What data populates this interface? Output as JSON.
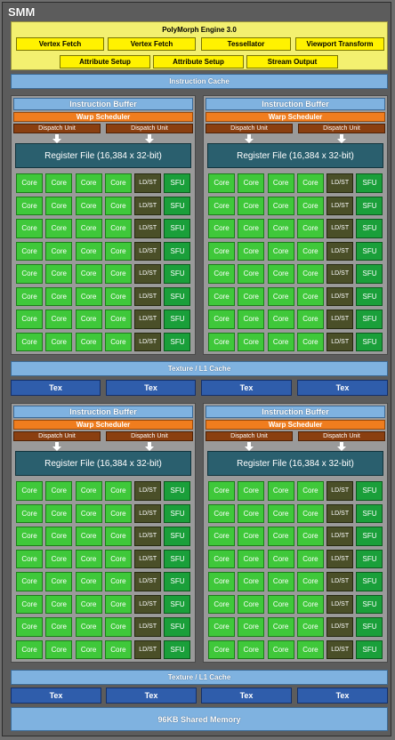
{
  "smm_title": "SMM",
  "polymorph": {
    "title": "PolyMorph Engine 3.0",
    "row1": [
      "Vertex Fetch",
      "Vertex Fetch",
      "Tessellator",
      "Viewport Transform"
    ],
    "row2": [
      "Attribute Setup",
      "Attribute Setup",
      "Stream Output"
    ]
  },
  "instruction_cache": "Instruction Cache",
  "quadrant": {
    "instruction_buffer": "Instruction Buffer",
    "warp_scheduler": "Warp Scheduler",
    "dispatch_unit": "Dispatch Unit",
    "register_file": "Register File (16,384 x 32-bit)",
    "core_label": "Core",
    "ldst_label": "LD/ST",
    "sfu_label": "SFU",
    "rows": 8
  },
  "texture_cache_top": "Texture / L1 Cache",
  "texture_cache_bottom": "Texture / L1 Cache",
  "tex_units_top": [
    "Tex",
    "Tex",
    "Tex",
    "Tex"
  ],
  "tex_units_bottom": [
    "Tex",
    "Tex",
    "Tex",
    "Tex"
  ],
  "shared_memory": "96KB Shared Memory",
  "colors": {
    "core": "#3fc83a",
    "sfu": "#1a9f3a",
    "ldst": "#4a4f28",
    "warp_scheduler": "#f07d1e",
    "dispatch_unit": "#8a3f10",
    "register_file": "#2a5f6e",
    "cache": "#7fb2e0",
    "tex": "#2f5dab",
    "polymorph": "#fff200"
  }
}
